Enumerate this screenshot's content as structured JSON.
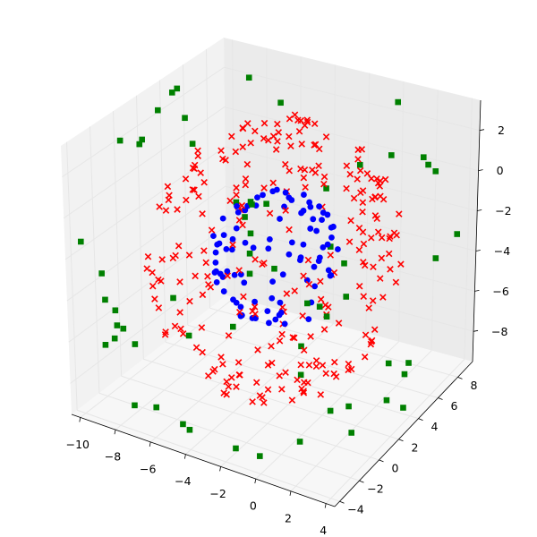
{
  "chart_data": {
    "type": "scatter",
    "projection": "3d",
    "title": "",
    "xlabel": "",
    "ylabel": "",
    "zlabel": "",
    "grid": true,
    "xlim": [
      -10.5,
      4.5
    ],
    "ylim": [
      -4.5,
      9.5
    ],
    "zlim": [
      -9.5,
      3.5
    ],
    "xticks": [
      {
        "value": -10,
        "label": "−10"
      },
      {
        "value": -8,
        "label": "−8"
      },
      {
        "value": -6,
        "label": "−6"
      },
      {
        "value": -4,
        "label": "−4"
      },
      {
        "value": -2,
        "label": "−2"
      },
      {
        "value": 0,
        "label": "0"
      },
      {
        "value": 2,
        "label": "2"
      },
      {
        "value": 4,
        "label": "4"
      }
    ],
    "yticks": [
      {
        "value": -4,
        "label": "−4"
      },
      {
        "value": -2,
        "label": "−2"
      },
      {
        "value": 0,
        "label": "0"
      },
      {
        "value": 2,
        "label": "2"
      },
      {
        "value": 4,
        "label": "4"
      },
      {
        "value": 6,
        "label": "6"
      },
      {
        "value": 8,
        "label": "8"
      }
    ],
    "zticks": [
      {
        "value": -8,
        "label": "−8"
      },
      {
        "value": -6,
        "label": "−6"
      },
      {
        "value": -4,
        "label": "−4"
      },
      {
        "value": -2,
        "label": "−2"
      },
      {
        "value": 0,
        "label": "0"
      },
      {
        "value": 2,
        "label": "2"
      }
    ],
    "series": [
      {
        "color": "#0000ff",
        "marker": "circle",
        "center": [
          -3,
          2.5,
          -3
        ],
        "radius": 3,
        "count": 90
      },
      {
        "color": "#ff0000",
        "marker": "x",
        "center": [
          -3,
          2.5,
          -3
        ],
        "radius": 6,
        "count": 260
      },
      {
        "color": "#008000",
        "marker": "square",
        "center": [
          -3,
          2.5,
          -3
        ],
        "radius": 9,
        "count": 190
      }
    ]
  }
}
